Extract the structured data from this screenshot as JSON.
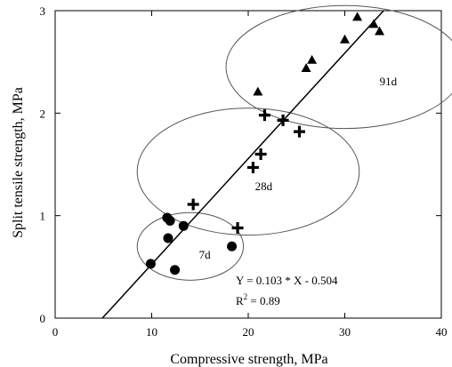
{
  "chart_data": {
    "type": "scatter",
    "xlabel": "Compressive strength, MPa",
    "ylabel": "Split tensile strength, MPa",
    "xlim": [
      0,
      40
    ],
    "ylim": [
      0,
      3
    ],
    "x_ticks": [
      0,
      10,
      20,
      30,
      40
    ],
    "y_ticks": [
      0,
      1,
      2,
      3
    ],
    "grid": false,
    "series": [
      {
        "name": "7d",
        "marker": "circle",
        "points": [
          {
            "x": 9.9,
            "y": 0.53
          },
          {
            "x": 11.6,
            "y": 0.98
          },
          {
            "x": 11.9,
            "y": 0.95
          },
          {
            "x": 11.7,
            "y": 0.78
          },
          {
            "x": 13.3,
            "y": 0.9
          },
          {
            "x": 12.4,
            "y": 0.47
          },
          {
            "x": 18.3,
            "y": 0.7
          }
        ]
      },
      {
        "name": "28d",
        "marker": "plus",
        "points": [
          {
            "x": 14.3,
            "y": 1.11
          },
          {
            "x": 18.9,
            "y": 0.88
          },
          {
            "x": 20.5,
            "y": 1.47
          },
          {
            "x": 21.3,
            "y": 1.6
          },
          {
            "x": 21.7,
            "y": 1.98
          },
          {
            "x": 23.6,
            "y": 1.93
          },
          {
            "x": 25.3,
            "y": 1.82
          }
        ]
      },
      {
        "name": "91d",
        "marker": "triangle",
        "points": [
          {
            "x": 21.0,
            "y": 2.21
          },
          {
            "x": 26.0,
            "y": 2.44
          },
          {
            "x": 26.6,
            "y": 2.52
          },
          {
            "x": 30.0,
            "y": 2.72
          },
          {
            "x": 31.3,
            "y": 2.94
          },
          {
            "x": 33.0,
            "y": 2.87
          },
          {
            "x": 33.6,
            "y": 2.8
          }
        ]
      }
    ],
    "regression": {
      "slope": 0.103,
      "intercept": -0.504,
      "x_range": [
        4.9,
        34.0
      ],
      "equation": "Y = 0.103 * X - 0.504",
      "r2_prefix": "R",
      "r2_exp": "2",
      "r2_value": " = 0.89"
    },
    "groups": [
      {
        "label": "7d",
        "center": [
          14.0,
          0.7
        ],
        "radius": [
          5.5,
          0.33
        ],
        "label_pos": [
          15.5,
          0.58
        ]
      },
      {
        "label": "28d",
        "center": [
          20.0,
          1.43
        ],
        "radius": [
          11.5,
          0.62
        ],
        "label_pos": [
          21.6,
          1.25
        ]
      },
      {
        "label": "91d",
        "center": [
          30.0,
          2.45
        ],
        "radius": [
          12.3,
          0.6
        ],
        "label_pos": [
          34.5,
          2.27
        ]
      }
    ]
  }
}
